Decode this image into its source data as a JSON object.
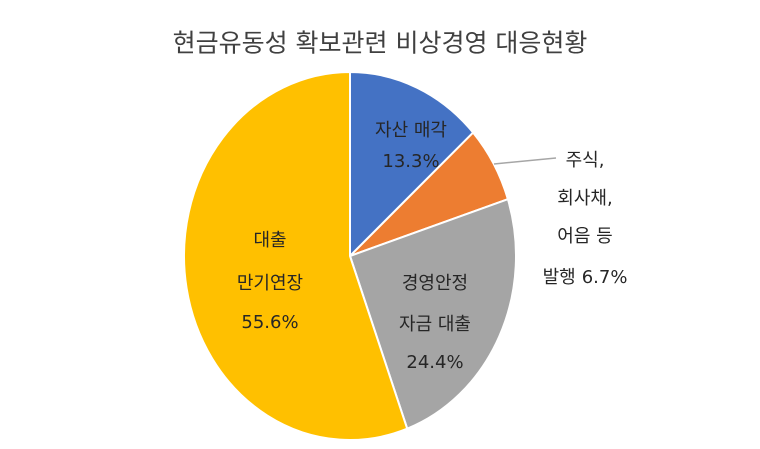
{
  "chart_data": {
    "type": "pie",
    "title": "현금유동성 확보관련 비상경영 대응현황",
    "start_angle": "top",
    "direction": "clockwise",
    "legend": "none",
    "value_suffix": "%",
    "slices": [
      {
        "label_lines": [
          "자산 매각"
        ],
        "value": 13.3,
        "color": "#4472C4",
        "label_placement": "inside"
      },
      {
        "label_lines": [
          "주식,",
          "회사채,",
          "어음 등",
          "발행"
        ],
        "value": 6.7,
        "color": "#ED7D31",
        "label_placement": "outside"
      },
      {
        "label_lines": [
          "경영안정",
          "자금 대출"
        ],
        "value": 24.4,
        "color": "#A5A5A5",
        "label_placement": "inside"
      },
      {
        "label_lines": [
          "대출",
          "만기연장"
        ],
        "value": 55.6,
        "color": "#FFC000",
        "label_placement": "inside"
      }
    ]
  }
}
